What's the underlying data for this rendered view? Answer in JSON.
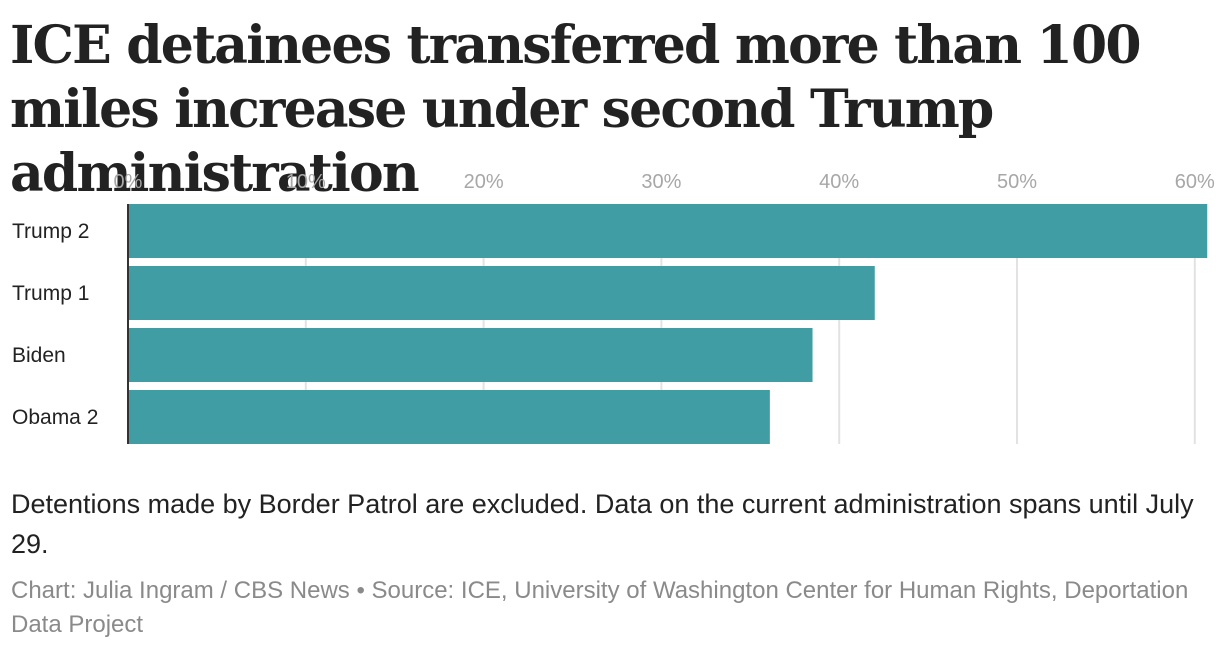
{
  "title": "ICE detainees transferred more than 100 miles increase under second Trump administration",
  "note": "Detentions made by Border Patrol are excluded. Data on the current administration spans until July 29.",
  "credit": "Chart: Julia Ingram / CBS News • Source: ICE, University of Washington Center for Human Rights, Deportation Data Project",
  "colors": {
    "bar": "#409da3",
    "grid": "#e2e2e2",
    "axis": "#333333"
  },
  "chart_data": {
    "type": "bar",
    "orientation": "horizontal",
    "title": "ICE detainees transferred more than 100 miles increase under second Trump administration",
    "xlabel": "",
    "ylabel": "",
    "categories": [
      "Trump 2",
      "Trump 1",
      "Biden",
      "Obama 2"
    ],
    "values": [
      60.7,
      42.0,
      38.5,
      36.1
    ],
    "unit": "%",
    "xlim": [
      0,
      61
    ],
    "ticks": [
      0,
      10,
      20,
      30,
      40,
      50,
      60
    ],
    "tick_labels": [
      "0%",
      "10%",
      "20%",
      "30%",
      "40%",
      "50%",
      "60%"
    ],
    "grid": true,
    "axis_position": "top",
    "legend": "none"
  }
}
